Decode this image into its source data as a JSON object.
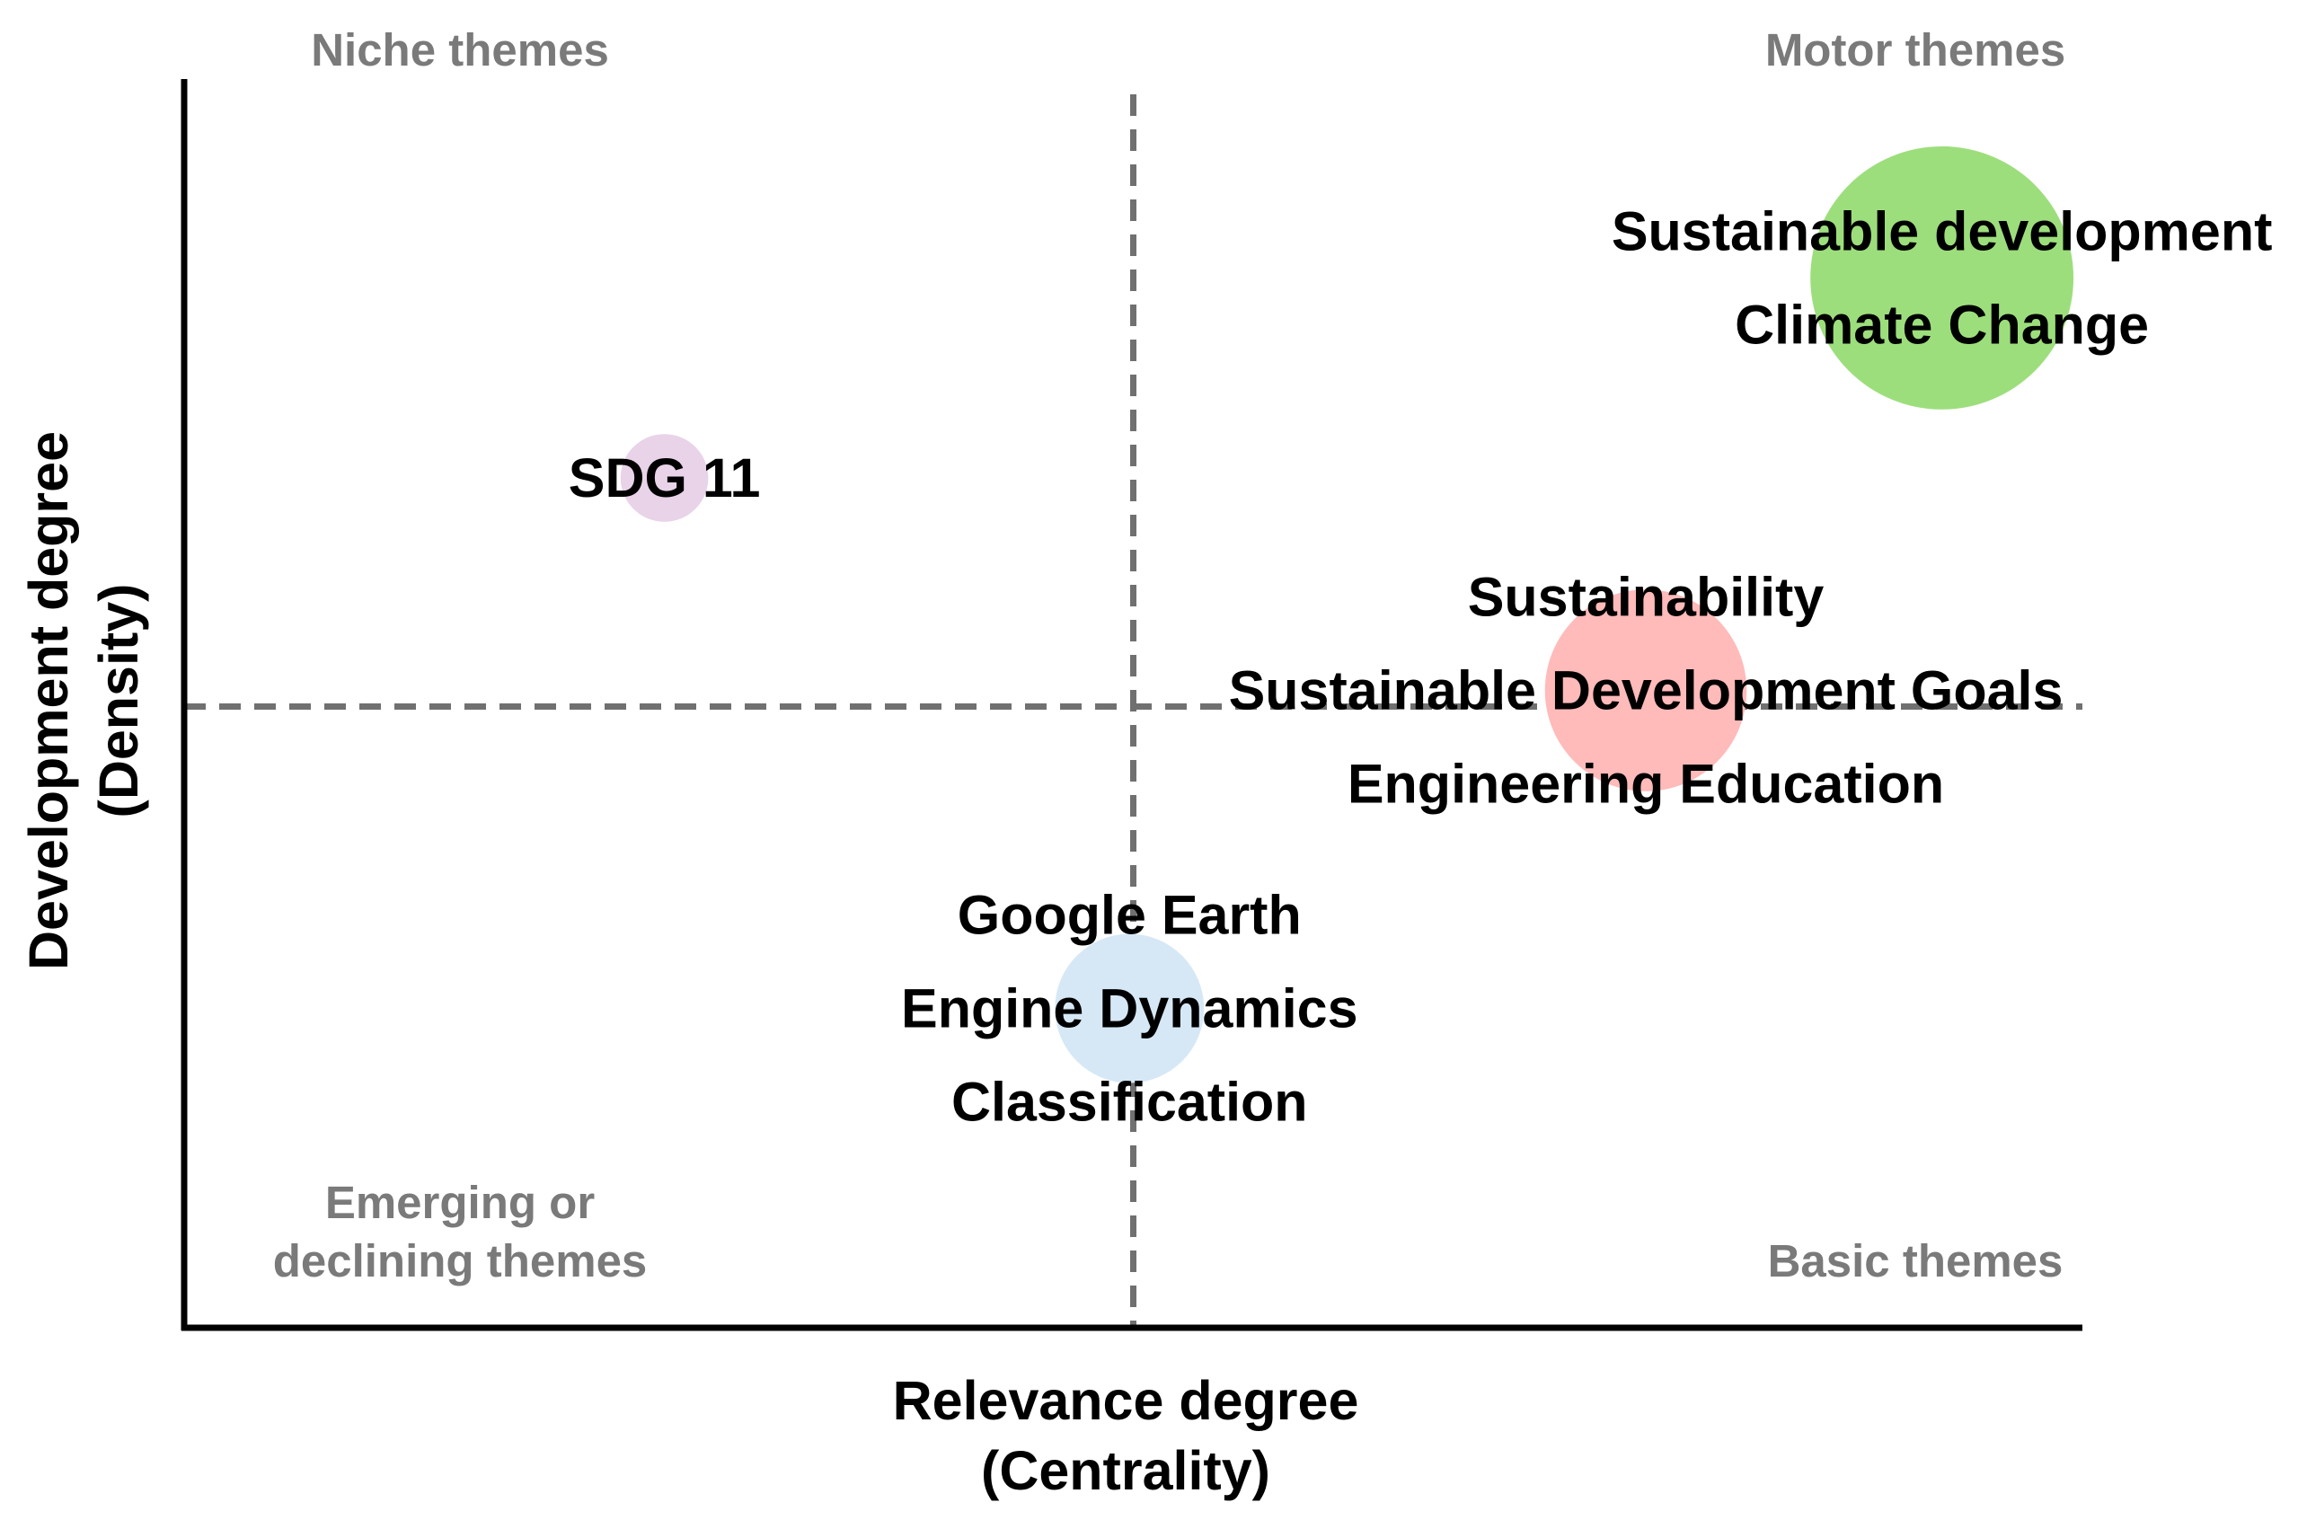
{
  "chart_data": {
    "type": "scatter",
    "title": "",
    "xlabel": [
      "Relevance degree",
      "(Centrality)"
    ],
    "ylabel": [
      "Development degree",
      "(Density)"
    ],
    "x_ticks": [],
    "y_ticks": [],
    "grid": false,
    "legend": "none",
    "xlim": [
      0,
      100
    ],
    "ylim": [
      0,
      100
    ],
    "divider": {
      "x": 50,
      "y": 50,
      "style": "dashed",
      "color": "#707070"
    },
    "quadrants": [
      {
        "key": "top-left",
        "lines": [
          "Niche themes"
        ]
      },
      {
        "key": "top-right",
        "lines": [
          "Motor themes"
        ]
      },
      {
        "key": "bottom-left",
        "lines": [
          "Emerging or",
          "declining themes"
        ]
      },
      {
        "key": "bottom-right",
        "lines": [
          "Basic themes"
        ]
      }
    ],
    "clusters": [
      {
        "x": 92.6,
        "y": 84.5,
        "size": 9.0,
        "color": "#9dde7c",
        "labels": [
          "Sustainable development",
          "Climate Change"
        ]
      },
      {
        "x": 25.3,
        "y": 68.4,
        "size": 3.0,
        "color": "#e8d3e8",
        "labels": [
          "SDG 11"
        ]
      },
      {
        "x": 77.0,
        "y": 51.3,
        "size": 6.9,
        "color": "#ffbaba",
        "labels": [
          "Sustainability",
          "Sustainable Development Goals",
          "Engineering Education"
        ]
      },
      {
        "x": 49.8,
        "y": 25.7,
        "size": 5.1,
        "color": "#d6e8f5",
        "labels": [
          "Google Earth",
          "Engine Dynamics",
          "Classification"
        ]
      }
    ]
  }
}
